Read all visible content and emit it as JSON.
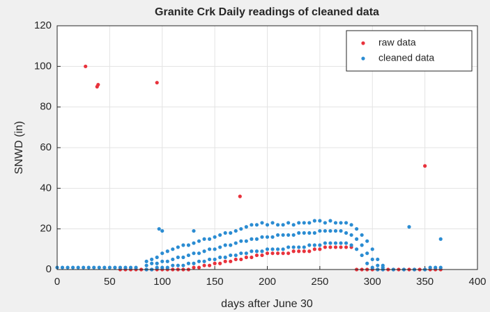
{
  "chart_data": {
    "type": "scatter",
    "title": "Granite Crk Daily readings of cleaned data",
    "xlabel": "days after June 30",
    "ylabel": "SNWD (in)",
    "xlim": [
      0,
      400
    ],
    "xticks": [
      0,
      50,
      100,
      150,
      200,
      250,
      300,
      350,
      400
    ],
    "ylim": [
      0,
      120
    ],
    "yticks": [
      0,
      20,
      40,
      60,
      80,
      100,
      120
    ],
    "grid": true,
    "legend": "upper right",
    "series": [
      {
        "name": "raw data",
        "color": "#e8323c",
        "x": [
          27,
          38,
          39,
          95,
          174,
          350,
          60,
          65,
          70,
          75,
          80,
          85,
          90,
          95,
          100,
          105,
          110,
          115,
          120,
          125,
          130,
          135,
          140,
          145,
          150,
          155,
          160,
          165,
          170,
          175,
          180,
          185,
          190,
          195,
          200,
          205,
          210,
          215,
          220,
          225,
          230,
          235,
          240,
          245,
          250,
          255,
          260,
          265,
          270,
          275,
          280,
          285,
          290,
          295,
          300,
          305,
          310,
          315,
          320,
          325,
          330,
          335,
          340,
          345,
          350,
          355,
          360,
          365
        ],
        "values": [
          100,
          90,
          91,
          92,
          36,
          51,
          0,
          0,
          0,
          0,
          0,
          0,
          0,
          0,
          0,
          0,
          0,
          0,
          0,
          0,
          1,
          1,
          2,
          2,
          3,
          3,
          4,
          4,
          5,
          5,
          6,
          6,
          7,
          7,
          8,
          8,
          8,
          8,
          8,
          9,
          9,
          9,
          9,
          10,
          10,
          11,
          11,
          11,
          11,
          11,
          11,
          0,
          0,
          0,
          0,
          0,
          0,
          0,
          0,
          0,
          0,
          0,
          0,
          0,
          0,
          0,
          0,
          0
        ]
      },
      {
        "name": "cleaned data",
        "color": "#2b8cd2",
        "x": [
          0,
          5,
          10,
          15,
          20,
          25,
          30,
          35,
          40,
          45,
          50,
          55,
          60,
          65,
          70,
          75,
          85,
          85,
          85,
          90,
          90,
          90,
          95,
          95,
          95,
          100,
          100,
          100,
          105,
          105,
          105,
          110,
          110,
          110,
          115,
          115,
          115,
          120,
          120,
          120,
          125,
          125,
          125,
          130,
          130,
          130,
          135,
          135,
          135,
          140,
          140,
          140,
          145,
          145,
          145,
          150,
          150,
          150,
          155,
          155,
          155,
          160,
          160,
          160,
          165,
          165,
          165,
          170,
          170,
          170,
          175,
          175,
          175,
          180,
          180,
          180,
          185,
          185,
          185,
          190,
          190,
          190,
          195,
          195,
          195,
          200,
          200,
          200,
          205,
          205,
          205,
          210,
          210,
          210,
          215,
          215,
          215,
          220,
          220,
          220,
          225,
          225,
          225,
          230,
          230,
          230,
          235,
          235,
          235,
          240,
          240,
          240,
          245,
          245,
          245,
          250,
          250,
          250,
          255,
          255,
          255,
          260,
          260,
          260,
          265,
          265,
          265,
          270,
          270,
          270,
          275,
          275,
          275,
          280,
          280,
          280,
          285,
          285,
          285,
          290,
          290,
          290,
          295,
          295,
          295,
          300,
          300,
          300,
          305,
          305,
          305,
          310,
          310,
          310,
          320,
          330,
          340,
          350,
          355,
          360,
          365,
          97,
          100,
          130,
          335,
          365
        ],
        "values": [
          1,
          1,
          1,
          1,
          1,
          1,
          1,
          1,
          1,
          1,
          1,
          1,
          1,
          1,
          1,
          1,
          0,
          2,
          4,
          0,
          3,
          5,
          1,
          3,
          6,
          1,
          4,
          8,
          1,
          4,
          9,
          2,
          5,
          10,
          2,
          6,
          11,
          2,
          6,
          12,
          3,
          7,
          12,
          3,
          8,
          13,
          4,
          8,
          14,
          4,
          9,
          15,
          5,
          10,
          15,
          5,
          10,
          16,
          6,
          11,
          17,
          6,
          12,
          18,
          7,
          12,
          18,
          7,
          13,
          19,
          8,
          14,
          20,
          8,
          14,
          21,
          9,
          15,
          22,
          9,
          15,
          22,
          9,
          16,
          23,
          10,
          16,
          22,
          10,
          16,
          23,
          10,
          17,
          22,
          10,
          17,
          22,
          11,
          17,
          23,
          11,
          17,
          22,
          11,
          18,
          23,
          11,
          18,
          23,
          12,
          18,
          23,
          12,
          18,
          24,
          12,
          19,
          24,
          13,
          19,
          23,
          13,
          19,
          24,
          13,
          19,
          23,
          13,
          19,
          23,
          13,
          18,
          23,
          12,
          17,
          22,
          10,
          15,
          20,
          7,
          12,
          17,
          3,
          8,
          14,
          1,
          5,
          10,
          0,
          2,
          5,
          0,
          1,
          2,
          0,
          0,
          0,
          0,
          1,
          1,
          1,
          20,
          19,
          19,
          21,
          15
        ]
      }
    ]
  }
}
